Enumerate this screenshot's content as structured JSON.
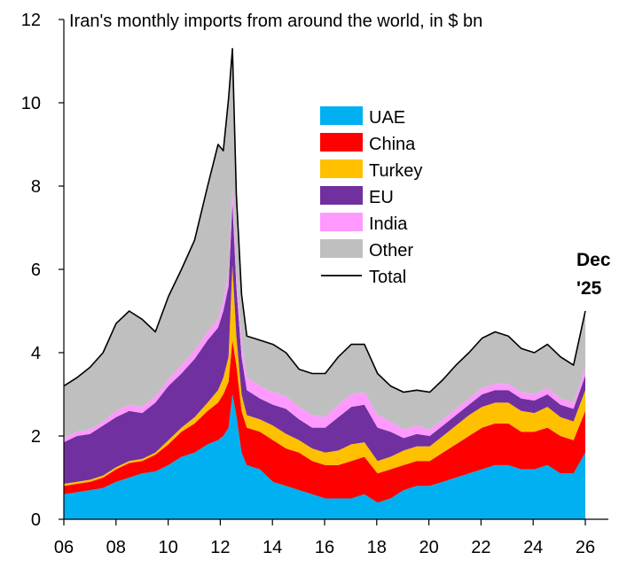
{
  "chart_data": {
    "type": "area",
    "title": "Iran's  monthly imports from around the world, in $ bn",
    "xlabel": "",
    "ylabel": "",
    "x_range": [
      2006,
      2026
    ],
    "ylim": [
      0,
      12
    ],
    "y_ticks": [
      0,
      2,
      4,
      6,
      8,
      10,
      12
    ],
    "y_tick_labels": [
      "0",
      "2",
      "4",
      "6",
      "8",
      "10",
      "12"
    ],
    "x_ticks": [
      2006,
      2008,
      2010,
      2012,
      2014,
      2016,
      2018,
      2020,
      2022,
      2024,
      2026
    ],
    "x_tick_labels": [
      "06",
      "08",
      "10",
      "12",
      "14",
      "16",
      "18",
      "20",
      "22",
      "24",
      "26"
    ],
    "grid": false,
    "stacked": true,
    "legend_position": "top-center",
    "annotation": [
      "Dec",
      "'25"
    ],
    "x": [
      2006.0,
      2006.5,
      2007.0,
      2007.5,
      2008.0,
      2008.5,
      2009.0,
      2009.5,
      2010.0,
      2010.5,
      2011.0,
      2011.5,
      2011.9,
      2012.1,
      2012.3,
      2012.45,
      2012.6,
      2012.8,
      2013.0,
      2013.5,
      2014.0,
      2014.5,
      2015.0,
      2015.5,
      2016.0,
      2016.5,
      2017.0,
      2017.5,
      2018.0,
      2018.5,
      2019.0,
      2019.5,
      2020.0,
      2020.5,
      2021.0,
      2021.5,
      2022.0,
      2022.5,
      2023.0,
      2023.5,
      2024.0,
      2024.5,
      2025.0,
      2025.5,
      2025.95
    ],
    "series": [
      {
        "name": "UAE",
        "color": "#00b0f0",
        "values": [
          0.6,
          0.65,
          0.7,
          0.75,
          0.9,
          1.0,
          1.1,
          1.15,
          1.3,
          1.5,
          1.6,
          1.8,
          1.9,
          2.0,
          2.2,
          3.0,
          2.5,
          1.6,
          1.3,
          1.2,
          0.9,
          0.8,
          0.7,
          0.6,
          0.5,
          0.5,
          0.5,
          0.6,
          0.4,
          0.5,
          0.7,
          0.8,
          0.8,
          0.9,
          1.0,
          1.1,
          1.2,
          1.3,
          1.3,
          1.2,
          1.2,
          1.3,
          1.1,
          1.1,
          1.6
        ]
      },
      {
        "name": "China",
        "color": "#ff0000",
        "values": [
          0.2,
          0.2,
          0.2,
          0.25,
          0.3,
          0.35,
          0.3,
          0.4,
          0.5,
          0.6,
          0.7,
          0.8,
          0.9,
          1.0,
          1.1,
          1.3,
          1.2,
          1.0,
          0.9,
          0.9,
          1.0,
          0.9,
          0.9,
          0.8,
          0.8,
          0.8,
          0.9,
          0.9,
          0.7,
          0.7,
          0.6,
          0.6,
          0.6,
          0.7,
          0.8,
          0.9,
          1.0,
          1.0,
          1.0,
          0.9,
          0.9,
          0.9,
          0.9,
          0.8,
          1.0
        ]
      },
      {
        "name": "Turkey",
        "color": "#ffc000",
        "values": [
          0.05,
          0.05,
          0.05,
          0.05,
          0.05,
          0.05,
          0.05,
          0.05,
          0.1,
          0.1,
          0.15,
          0.2,
          0.3,
          0.4,
          0.6,
          1.8,
          0.7,
          0.4,
          0.3,
          0.3,
          0.35,
          0.35,
          0.3,
          0.3,
          0.3,
          0.35,
          0.4,
          0.35,
          0.3,
          0.3,
          0.35,
          0.35,
          0.35,
          0.4,
          0.45,
          0.5,
          0.5,
          0.5,
          0.5,
          0.5,
          0.45,
          0.5,
          0.45,
          0.45,
          0.5
        ]
      },
      {
        "name": "EU",
        "color": "#7030a0",
        "values": [
          1.0,
          1.1,
          1.1,
          1.2,
          1.2,
          1.2,
          1.1,
          1.2,
          1.3,
          1.3,
          1.4,
          1.5,
          1.5,
          1.6,
          1.7,
          1.5,
          1.2,
          0.9,
          0.6,
          0.5,
          0.5,
          0.6,
          0.5,
          0.5,
          0.6,
          0.8,
          0.9,
          0.9,
          0.8,
          0.6,
          0.3,
          0.3,
          0.25,
          0.25,
          0.25,
          0.25,
          0.3,
          0.3,
          0.3,
          0.3,
          0.3,
          0.3,
          0.3,
          0.3,
          0.35
        ]
      },
      {
        "name": "India",
        "color": "#ff99ff",
        "values": [
          0.1,
          0.1,
          0.1,
          0.1,
          0.15,
          0.15,
          0.15,
          0.15,
          0.15,
          0.2,
          0.2,
          0.2,
          0.2,
          0.25,
          0.3,
          0.35,
          0.3,
          0.3,
          0.3,
          0.3,
          0.3,
          0.3,
          0.3,
          0.3,
          0.25,
          0.3,
          0.3,
          0.3,
          0.3,
          0.25,
          0.2,
          0.2,
          0.15,
          0.15,
          0.15,
          0.15,
          0.15,
          0.15,
          0.15,
          0.15,
          0.15,
          0.15,
          0.15,
          0.15,
          0.15
        ]
      },
      {
        "name": "Other",
        "color": "#bfbfbf",
        "values": [
          1.25,
          1.3,
          1.5,
          1.65,
          2.1,
          2.25,
          2.1,
          1.55,
          2.0,
          2.3,
          2.65,
          3.5,
          4.2,
          3.6,
          4.2,
          3.35,
          1.9,
          1.2,
          1.0,
          1.1,
          1.15,
          1.05,
          0.9,
          1.0,
          1.05,
          1.15,
          1.2,
          1.15,
          1.0,
          0.85,
          0.9,
          0.85,
          0.9,
          0.95,
          1.05,
          1.1,
          1.2,
          1.25,
          1.15,
          1.05,
          1.0,
          1.05,
          1.0,
          0.9,
          1.4
        ]
      },
      {
        "name": "Total",
        "color": "#000000",
        "line": true,
        "values": [
          3.2,
          3.4,
          3.65,
          4.0,
          4.7,
          5.0,
          4.8,
          4.5,
          5.35,
          6.0,
          6.7,
          8.0,
          9.0,
          8.85,
          10.1,
          11.3,
          7.8,
          5.4,
          4.4,
          4.3,
          4.2,
          4.0,
          3.6,
          3.5,
          3.5,
          3.9,
          4.2,
          4.2,
          3.5,
          3.2,
          3.05,
          3.1,
          3.05,
          3.35,
          3.7,
          4.0,
          4.35,
          4.5,
          4.4,
          4.1,
          4.0,
          4.2,
          3.9,
          3.7,
          5.0
        ]
      }
    ]
  }
}
